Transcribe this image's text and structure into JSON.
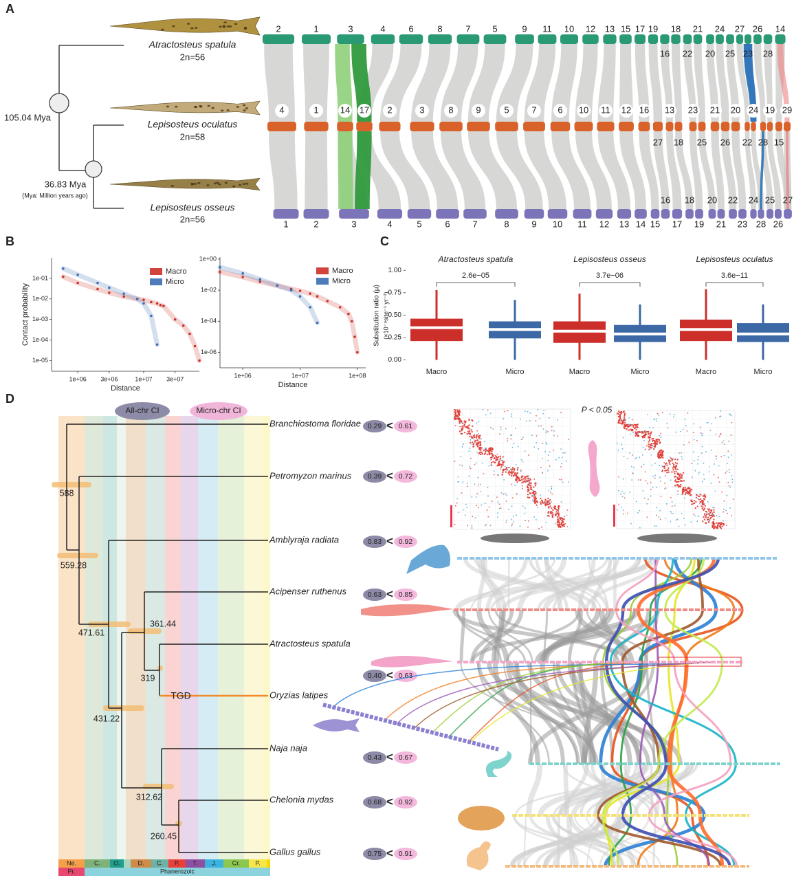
{
  "panel_labels": {
    "a": "A",
    "b": "B",
    "c": "C",
    "d": "D"
  },
  "panel_a": {
    "species": [
      {
        "name": "Atractosteus spatula",
        "karyotype": "2n=56"
      },
      {
        "name": "Lepisosteus oculatus",
        "karyotype": "2n=58"
      },
      {
        "name": "Lepisosteus osseus",
        "karyotype": "2n=56"
      }
    ],
    "divergences": [
      "105.04 Mya",
      "36.83 Mya"
    ],
    "note": "(Mya: Million years ago)",
    "chromosomes": {
      "top_above": [
        2,
        1,
        3,
        4,
        6,
        8,
        7,
        5,
        9,
        11,
        10,
        12,
        13,
        15,
        17,
        19,
        18,
        21,
        24,
        27,
        26,
        14
      ],
      "top_below": [
        16,
        22,
        20,
        25,
        23,
        28
      ],
      "middle_above": [
        4,
        1,
        14,
        17,
        2,
        3,
        8,
        9,
        5,
        7,
        6,
        10,
        11,
        12,
        16,
        13,
        23,
        21,
        20,
        24,
        19,
        29
      ],
      "middle_below": [
        27,
        18,
        25,
        26,
        22,
        28,
        15
      ],
      "bottom_above": [
        16,
        18,
        20,
        22,
        24,
        25,
        27
      ],
      "bottom_below": [
        1,
        2,
        3,
        4,
        5,
        6,
        7,
        8,
        9,
        10,
        11,
        12,
        13,
        14,
        15,
        17,
        19,
        21,
        23,
        28,
        26
      ]
    }
  },
  "chart_data": [
    {
      "type": "scatter",
      "x_label": "Distance",
      "y_label": "Contact probability",
      "log_x": true,
      "log_y": true,
      "legend": "upper right",
      "xlim": [
        400000,
        70000000
      ],
      "ylim": [
        3e-06,
        1
      ],
      "xticks": [
        {
          "value": 1000000,
          "label": "1e+06"
        },
        {
          "value": 3000000,
          "label": "3e+06"
        },
        {
          "value": 10000000,
          "label": "1e+07"
        },
        {
          "value": 30000000,
          "label": "3e+07"
        }
      ],
      "yticks": [
        {
          "value": 0.1,
          "label": "1e-01"
        },
        {
          "value": 0.01,
          "label": "1e-02"
        },
        {
          "value": 0.001,
          "label": "1e-03"
        },
        {
          "value": 0.0001,
          "label": "1e-04"
        },
        {
          "value": 1e-05,
          "label": "1e-05"
        }
      ],
      "x": [
        600000,
        1000000,
        2000000,
        3000000,
        5000000,
        8000000,
        10000000,
        13000000,
        16000000,
        18000000,
        20000000,
        30000000,
        40000000,
        50000000,
        60000000,
        70000000
      ],
      "series": [
        {
          "name": "Macro",
          "color": "#cc3028",
          "values": [
            0.12,
            0.06,
            0.03,
            0.02,
            0.013,
            0.01,
            0.009,
            0.007,
            0.006,
            0.005,
            0.0045,
            0.001,
            0.0005,
            0.0002,
            5e-05,
            1e-05
          ]
        },
        {
          "name": "Micro",
          "color": "#3b6db3",
          "values": [
            0.3,
            0.15,
            0.06,
            0.035,
            0.018,
            0.01,
            0.006,
            0.0015,
            6e-05,
            null,
            null,
            null,
            null,
            null,
            null,
            null
          ]
        }
      ]
    },
    {
      "type": "scatter",
      "x_label": "Distance",
      "log_x": true,
      "log_y": true,
      "legend": "upper right",
      "xlim": [
        400000,
        140000000
      ],
      "ylim": [
        1e-07,
        1.35
      ],
      "xticks": [
        {
          "value": 1000000,
          "label": "1e+06"
        },
        {
          "value": 10000000,
          "label": "1e+07"
        },
        {
          "value": 100000000,
          "label": "1e+08"
        }
      ],
      "yticks": [
        {
          "value": 1,
          "label": "1e+00"
        },
        {
          "value": 0.01,
          "label": "1e-02"
        },
        {
          "value": 0.0001,
          "label": "1e-04"
        },
        {
          "value": 1e-06,
          "label": "1e-06"
        }
      ],
      "x": [
        400000,
        1000000,
        2000000,
        4000000,
        7000000,
        10000000,
        15000000,
        20000000,
        30000000,
        50000000,
        70000000,
        80000000,
        90000000,
        100000000
      ],
      "series": [
        {
          "name": "Macro",
          "color": "#cc3028",
          "values": [
            0.15,
            0.07,
            0.035,
            0.02,
            0.012,
            0.009,
            0.006,
            0.004,
            0.002,
            0.0008,
            0.0003,
            0.0001,
            1e-05,
            1e-06
          ]
        },
        {
          "name": "Micro",
          "color": "#3b6db3",
          "values": [
            0.3,
            0.12,
            0.05,
            0.02,
            0.01,
            0.004,
            0.0008,
            8e-05,
            null,
            null,
            null,
            null,
            null,
            null
          ]
        }
      ]
    },
    {
      "type": "box",
      "y_label": "Substitution ratio (μ)",
      "y_unit": "(×10⁻⁹site⁻¹ yr⁻¹)",
      "ylim": [
        -0.05,
        1.04
      ],
      "yticks": [
        {
          "value": 0,
          "label": "0.00"
        },
        0.25,
        {
          "value": 0.5,
          "label": "0.50"
        },
        0.75,
        {
          "value": 1,
          "label": "1.00"
        }
      ],
      "colors": [
        "#cc2f2a",
        "#3c68a6"
      ],
      "facets": [
        {
          "title": "Atractosteus spatula",
          "p_value": "2.6e−05",
          "categories": [
            "Macro",
            "Micro"
          ],
          "boxes": [
            {
              "min": 0,
              "q1": 0.21,
              "median": 0.36,
              "q3": 0.46,
              "max": 0.78
            },
            {
              "min": 0,
              "q1": 0.24,
              "median": 0.34,
              "q3": 0.43,
              "max": 0.67
            }
          ]
        },
        {
          "title": "Lepisosteus osseus",
          "p_value": "3.7e−06",
          "categories": [
            "Macro",
            "Micro"
          ],
          "boxes": [
            {
              "min": 0,
              "q1": 0.19,
              "median": 0.32,
              "q3": 0.43,
              "max": 0.74
            },
            {
              "min": 0,
              "q1": 0.2,
              "median": 0.29,
              "q3": 0.39,
              "max": 0.62
            }
          ]
        },
        {
          "title": "Lepisosteus oculatus",
          "p_value": "3.6e−11",
          "categories": [
            "Macro",
            "Micro"
          ],
          "boxes": [
            {
              "min": 0,
              "q1": 0.21,
              "median": 0.34,
              "q3": 0.45,
              "max": 0.79
            },
            {
              "min": 0,
              "q1": 0.2,
              "median": 0.29,
              "q3": 0.41,
              "max": 0.62
            }
          ]
        }
      ]
    }
  ],
  "panel_d": {
    "legend": [
      "All-chr CI",
      "Micro-chr CI"
    ],
    "species": [
      "Branchiostoma floridae",
      "Petromyzon marinus",
      "Amblyraja radiata",
      "Acipenser ruthenus",
      "Atractosteus spatula",
      "Oryzias latipes",
      "Naja naja",
      "Chelonia mydas",
      "Gallus gallus"
    ],
    "ci": [
      {
        "all": "0.29",
        "sign": "<",
        "micro": "0.61"
      },
      {
        "all": "0.39",
        "sign": "<",
        "micro": "0.72"
      },
      {
        "all": "0.83",
        "sign": "<",
        "micro": "0.92"
      },
      {
        "all": "0.63",
        "sign": "<",
        "micro": "0.85"
      },
      {
        "all": "0.40",
        "sign": "<",
        "micro": "0.63"
      },
      {
        "all": "0.43",
        "sign": "<",
        "micro": "0.67"
      },
      {
        "all": "0.68",
        "sign": "<",
        "micro": "0.92"
      },
      {
        "all": "0.75",
        "sign": "<",
        "micro": "0.91"
      }
    ],
    "node_ages": [
      588,
      559.28,
      471.61,
      361.44,
      319,
      431.22,
      312.62,
      260.45
    ],
    "event": "TGD",
    "periods": [
      "Ne.",
      "C.",
      "O.",
      "D.",
      "C.",
      "P.",
      "T.",
      "J.",
      "Cr.",
      "P."
    ],
    "eras": [
      "Pr.",
      "Phanerozoic"
    ],
    "significance": "P < 0.05"
  }
}
